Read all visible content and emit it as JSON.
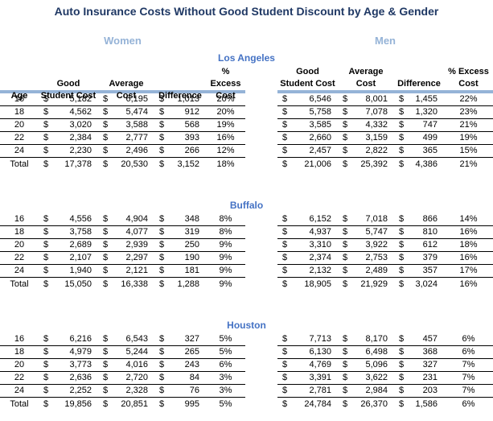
{
  "title": "Auto Insurance Costs Without Good Student Discount by Age & Gender",
  "gender_headers": {
    "women": "Women",
    "men": "Men"
  },
  "currency_symbol": "$",
  "columns": {
    "age": "Age",
    "good_student": "Good\nStudent Cost",
    "average": "Average\nCost",
    "difference": "Difference",
    "excess": "% Excess\nCost"
  },
  "colors": {
    "title_text": "#1f3864",
    "gender_header_text": "#95b3d7",
    "city_header_text": "#4472c4",
    "header_rule": "#95b3d7",
    "row_border": "#000000"
  },
  "sections": [
    {
      "city": "Los Angeles",
      "women": {
        "rows": [
          [
            "16",
            "5,182",
            "6,195",
            "1,013",
            "20%"
          ],
          [
            "18",
            "4,562",
            "5,474",
            "912",
            "20%"
          ],
          [
            "20",
            "3,020",
            "3,588",
            "568",
            "19%"
          ],
          [
            "22",
            "2,384",
            "2,777",
            "393",
            "16%"
          ],
          [
            "24",
            "2,230",
            "2,496",
            "266",
            "12%"
          ],
          [
            "Total",
            "17,378",
            "20,530",
            "3,152",
            "18%"
          ]
        ]
      },
      "men": {
        "rows": [
          [
            "6,546",
            "8,001",
            "1,455",
            "22%"
          ],
          [
            "5,758",
            "7,078",
            "1,320",
            "23%"
          ],
          [
            "3,585",
            "4,332",
            "747",
            "21%"
          ],
          [
            "2,660",
            "3,159",
            "499",
            "19%"
          ],
          [
            "2,457",
            "2,822",
            "365",
            "15%"
          ],
          [
            "21,006",
            "25,392",
            "4,386",
            "21%"
          ]
        ]
      }
    },
    {
      "city": "Buffalo",
      "women": {
        "rows": [
          [
            "16",
            "4,556",
            "4,904",
            "348",
            "8%"
          ],
          [
            "18",
            "3,758",
            "4,077",
            "319",
            "8%"
          ],
          [
            "20",
            "2,689",
            "2,939",
            "250",
            "9%"
          ],
          [
            "22",
            "2,107",
            "2,297",
            "190",
            "9%"
          ],
          [
            "24",
            "1,940",
            "2,121",
            "181",
            "9%"
          ],
          [
            "Total",
            "15,050",
            "16,338",
            "1,288",
            "9%"
          ]
        ]
      },
      "men": {
        "rows": [
          [
            "6,152",
            "7,018",
            "866",
            "14%"
          ],
          [
            "4,937",
            "5,747",
            "810",
            "16%"
          ],
          [
            "3,310",
            "3,922",
            "612",
            "18%"
          ],
          [
            "2,374",
            "2,753",
            "379",
            "16%"
          ],
          [
            "2,132",
            "2,489",
            "357",
            "17%"
          ],
          [
            "18,905",
            "21,929",
            "3,024",
            "16%"
          ]
        ]
      }
    },
    {
      "city": "Houston",
      "women": {
        "rows": [
          [
            "16",
            "6,216",
            "6,543",
            "327",
            "5%"
          ],
          [
            "18",
            "4,979",
            "5,244",
            "265",
            "5%"
          ],
          [
            "20",
            "3,773",
            "4,016",
            "243",
            "6%"
          ],
          [
            "22",
            "2,636",
            "2,720",
            "84",
            "3%"
          ],
          [
            "24",
            "2,252",
            "2,328",
            "76",
            "3%"
          ],
          [
            "Total",
            "19,856",
            "20,851",
            "995",
            "5%"
          ]
        ]
      },
      "men": {
        "rows": [
          [
            "7,713",
            "8,170",
            "457",
            "6%"
          ],
          [
            "6,130",
            "6,498",
            "368",
            "6%"
          ],
          [
            "4,769",
            "5,096",
            "327",
            "7%"
          ],
          [
            "3,391",
            "3,622",
            "231",
            "7%"
          ],
          [
            "2,781",
            "2,984",
            "203",
            "7%"
          ],
          [
            "24,784",
            "26,370",
            "1,586",
            "6%"
          ]
        ]
      }
    }
  ]
}
